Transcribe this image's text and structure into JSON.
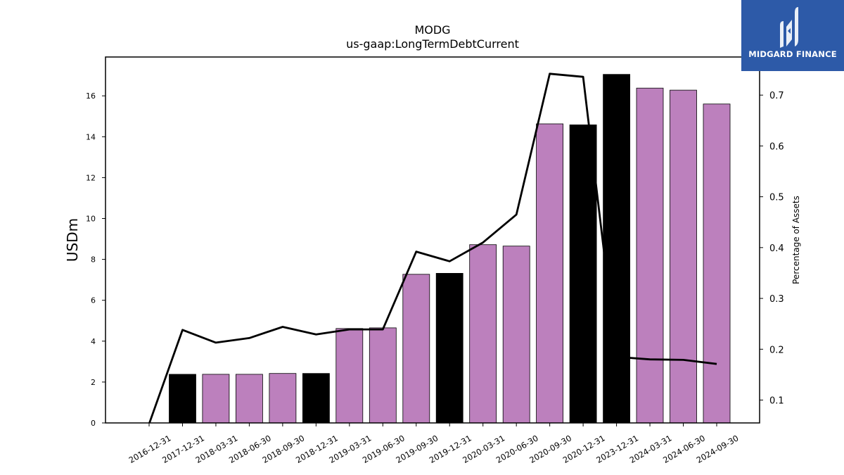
{
  "chart_data": {
    "type": "bar",
    "title": "MODG",
    "subtitle": "us-gaap:LongTermDebtCurrent",
    "ylabel": "USDm",
    "y2label": "Percentage of Assets",
    "ylim": [
      0,
      17.9
    ],
    "y2lim": [
      0.055,
      0.775
    ],
    "yticks": [
      0,
      2,
      4,
      6,
      8,
      10,
      12,
      14,
      16
    ],
    "y2ticks": [
      "0.1",
      "0.2",
      "0.3",
      "0.4",
      "0.5",
      "0.6",
      "0.7"
    ],
    "categories": [
      "2016-12-31",
      "2017-12-31",
      "2018-03-31",
      "2018-06-30",
      "2018-09-30",
      "2018-12-31",
      "2019-03-31",
      "2019-06-30",
      "2019-09-30",
      "2019-12-31",
      "2020-03-31",
      "2020-06-30",
      "2020-09-30",
      "2020-12-31",
      "2023-12-31",
      "2024-03-31",
      "2024-06-30",
      "2024-09-30"
    ],
    "series": [
      {
        "kind": "bar",
        "values": [
          0,
          2.38,
          2.38,
          2.38,
          2.42,
          2.42,
          4.62,
          4.65,
          7.27,
          7.32,
          8.72,
          8.65,
          14.63,
          14.58,
          17.05,
          16.38,
          16.28,
          15.6
        ],
        "colors": [
          "#000000",
          "#000000",
          "#bc80bd",
          "#bc80bd",
          "#bc80bd",
          "#000000",
          "#bc80bd",
          "#bc80bd",
          "#bc80bd",
          "#000000",
          "#bc80bd",
          "#bc80bd",
          "#bc80bd",
          "#000000",
          "#000000",
          "#bc80bd",
          "#bc80bd",
          "#bc80bd"
        ]
      },
      {
        "kind": "line",
        "axis": "right",
        "color": "#000000",
        "values": [
          0.053,
          0.238,
          0.213,
          0.222,
          0.244,
          0.229,
          0.239,
          0.239,
          0.392,
          0.373,
          0.41,
          0.465,
          0.742,
          0.736,
          0.185,
          0.18,
          0.179,
          0.171
        ]
      }
    ],
    "grid": false,
    "legend": "none"
  },
  "logo": {
    "text": "MIDGARD FINANCE"
  },
  "colors": {
    "quarterly": "#bc80bd",
    "annual": "#000000",
    "logo_bg": "#2d5aa8"
  }
}
